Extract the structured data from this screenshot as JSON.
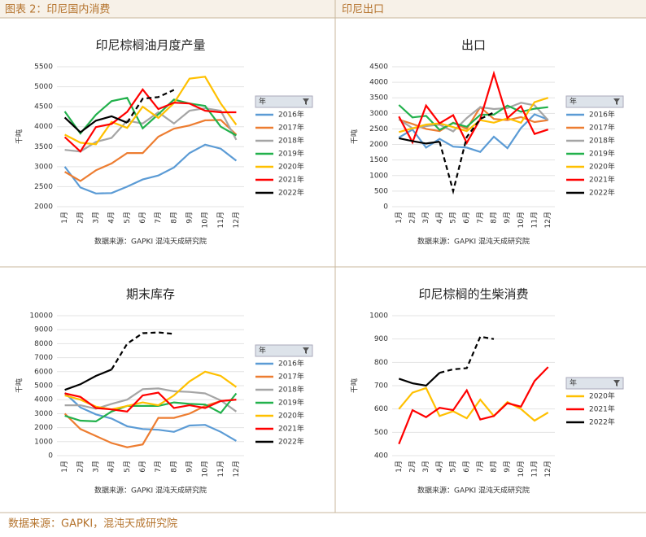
{
  "header": {
    "left": "图表 2：印尼国内消费",
    "right": "印尼出口"
  },
  "chart_data": [
    {
      "type": "line",
      "title": "印尼棕榈油月度产量",
      "y_label": "千吨",
      "legend_title": "年",
      "source": "数据来源：GAPKI 混沌天成研究院",
      "categories": [
        "1月",
        "2月",
        "3月",
        "4月",
        "5月",
        "6月",
        "7月",
        "8月",
        "9月",
        "10月",
        "11月",
        "12月"
      ],
      "ylim": [
        2000,
        5500
      ],
      "yticks": [
        2000,
        2500,
        3000,
        3500,
        4000,
        4500,
        5000,
        5500
      ],
      "series": [
        {
          "name": "2016年",
          "color": "#5b9bd5",
          "values": [
            3000,
            2480,
            2330,
            2340,
            2500,
            2680,
            2780,
            2980,
            3340,
            3550,
            3450,
            3150
          ]
        },
        {
          "name": "2017年",
          "color": "#ed7d31",
          "values": [
            2870,
            2640,
            2910,
            3080,
            3340,
            3340,
            3750,
            3950,
            4030,
            4160,
            4170,
            3800
          ]
        },
        {
          "name": "2018年",
          "color": "#a5a5a5",
          "values": [
            3420,
            3380,
            3620,
            3720,
            4150,
            4080,
            4360,
            4080,
            4400,
            4460,
            4400,
            3670
          ]
        },
        {
          "name": "2019年",
          "color": "#22b14c",
          "values": [
            4380,
            3830,
            4300,
            4640,
            4720,
            3960,
            4310,
            4680,
            4580,
            4520,
            4000,
            3780
          ]
        },
        {
          "name": "2020年",
          "color": "#ffc000",
          "values": [
            3800,
            3600,
            3560,
            4120,
            3970,
            4500,
            4220,
            4590,
            5200,
            5250,
            4580,
            4050
          ]
        },
        {
          "name": "2021年",
          "color": "#ff0000",
          "values": [
            3740,
            3380,
            3990,
            4070,
            4370,
            4930,
            4440,
            4600,
            4580,
            4400,
            4360,
            4360
          ]
        },
        {
          "name": "2022年",
          "color": "#000000",
          "dashed_from": 4,
          "values": [
            4230,
            3860,
            4150,
            4260,
            4100,
            4700,
            4740,
            4920,
            null,
            null,
            null,
            null
          ]
        }
      ]
    },
    {
      "type": "line",
      "title": "出口",
      "y_label": "千吨",
      "legend_title": "年",
      "source": "数据来源：GAPKI 混沌天成研究院",
      "categories": [
        "1月",
        "2月",
        "3月",
        "4月",
        "5月",
        "6月",
        "7月",
        "8月",
        "9月",
        "10月",
        "11月",
        "12月"
      ],
      "ylim": [
        0,
        4500
      ],
      "yticks": [
        0,
        500,
        1000,
        1500,
        2000,
        2500,
        3000,
        3500,
        4000,
        4500
      ],
      "series": [
        {
          "name": "2016年",
          "color": "#5b9bd5",
          "values": [
            2220,
            2480,
            1900,
            2180,
            1930,
            1900,
            1760,
            2250,
            1880,
            2530,
            2970,
            2800
          ]
        },
        {
          "name": "2017年",
          "color": "#ed7d31",
          "values": [
            2800,
            2660,
            2500,
            2430,
            2700,
            2500,
            3200,
            2820,
            2780,
            2880,
            2720,
            2780
          ]
        },
        {
          "name": "2018年",
          "color": "#a5a5a5",
          "values": [
            2810,
            2520,
            2590,
            2640,
            2420,
            2850,
            3200,
            3140,
            3170,
            3340,
            3260,
            2780
          ]
        },
        {
          "name": "2019年",
          "color": "#22b14c",
          "values": [
            3270,
            2870,
            2920,
            2470,
            2690,
            2570,
            2950,
            2960,
            3250,
            3050,
            3150,
            3200
          ]
        },
        {
          "name": "2020年",
          "color": "#ffc000",
          "values": [
            2400,
            2520,
            2640,
            2680,
            2560,
            2430,
            2780,
            2700,
            2840,
            2700,
            3360,
            3500
          ]
        },
        {
          "name": "2021年",
          "color": "#ff0000",
          "values": [
            2900,
            2070,
            3250,
            2680,
            2940,
            2050,
            2820,
            4280,
            2850,
            3230,
            2340,
            2480
          ]
        },
        {
          "name": "2022年",
          "color": "#000000",
          "dashed_from": 3,
          "values": [
            2200,
            2110,
            2030,
            2090,
            500,
            2240,
            2820,
            3030,
            null,
            null,
            null,
            null
          ]
        }
      ]
    },
    {
      "type": "line",
      "title": "期末库存",
      "y_label": "千吨",
      "legend_title": "年",
      "source": "数据来源：GAPKI 混沌天成研究院",
      "categories": [
        "1月",
        "2月",
        "3月",
        "4月",
        "5月",
        "6月",
        "7月",
        "8月",
        "9月",
        "10月",
        "11月",
        "12月"
      ],
      "ylim": [
        0,
        10000
      ],
      "yticks": [
        0,
        1000,
        2000,
        3000,
        4000,
        5000,
        6000,
        7000,
        8000,
        9000,
        10000
      ],
      "series": [
        {
          "name": "2016年",
          "color": "#5b9bd5",
          "values": [
            4480,
            3450,
            2950,
            2650,
            2100,
            1900,
            1850,
            1700,
            2150,
            2200,
            1700,
            1050
          ]
        },
        {
          "name": "2017年",
          "color": "#ed7d31",
          "values": [
            3000,
            1900,
            1400,
            900,
            600,
            800,
            2700,
            2700,
            3000,
            3550,
            3900,
            4000
          ]
        },
        {
          "name": "2018年",
          "color": "#a5a5a5",
          "values": [
            3600,
            3600,
            3350,
            3700,
            4000,
            4750,
            4800,
            4600,
            4550,
            4450,
            3950,
            3150
          ]
        },
        {
          "name": "2019年",
          "color": "#22b14c",
          "values": [
            2850,
            2500,
            2450,
            3150,
            3550,
            3550,
            3550,
            3800,
            3700,
            3650,
            3050,
            4450
          ]
        },
        {
          "name": "2020年",
          "color": "#ffc000",
          "values": [
            4300,
            4000,
            3500,
            3300,
            3550,
            3800,
            3600,
            4300,
            5300,
            6000,
            5700,
            4900
          ]
        },
        {
          "name": "2021年",
          "color": "#ff0000",
          "values": [
            4450,
            4200,
            3400,
            3300,
            3150,
            4300,
            4500,
            3400,
            3600,
            3400,
            3900,
            4000
          ]
        },
        {
          "name": "2022年",
          "color": "#000000",
          "dashed_from": 3,
          "values": [
            4700,
            5100,
            5700,
            6150,
            8000,
            8750,
            8800,
            8700,
            null,
            null,
            null,
            null
          ]
        }
      ]
    },
    {
      "type": "line",
      "title": "印尼棕榈的生柴消费",
      "y_label": "千吨",
      "legend_title": "年",
      "source": "数据来源：GAPKI 混沌天成研究院",
      "categories": [
        "1月",
        "2月",
        "3月",
        "4月",
        "5月",
        "6月",
        "7月",
        "8月",
        "9月",
        "10月",
        "11月",
        "12月"
      ],
      "ylim": [
        400,
        1000
      ],
      "yticks": [
        400,
        500,
        600,
        700,
        800,
        900,
        1000
      ],
      "series": [
        {
          "name": "2020年",
          "color": "#ffc000",
          "values": [
            600,
            670,
            690,
            570,
            590,
            560,
            640,
            570,
            630,
            600,
            550,
            585
          ]
        },
        {
          "name": "2021年",
          "color": "#ff0000",
          "values": [
            450,
            595,
            565,
            605,
            595,
            680,
            555,
            570,
            625,
            610,
            720,
            780
          ]
        },
        {
          "name": "2022年",
          "color": "#000000",
          "dashed_from": 3,
          "values": [
            730,
            710,
            700,
            755,
            770,
            775,
            910,
            900,
            null,
            null,
            null,
            null
          ]
        }
      ]
    }
  ],
  "footer": "数据来源：GAPKI，混沌天成研究院"
}
